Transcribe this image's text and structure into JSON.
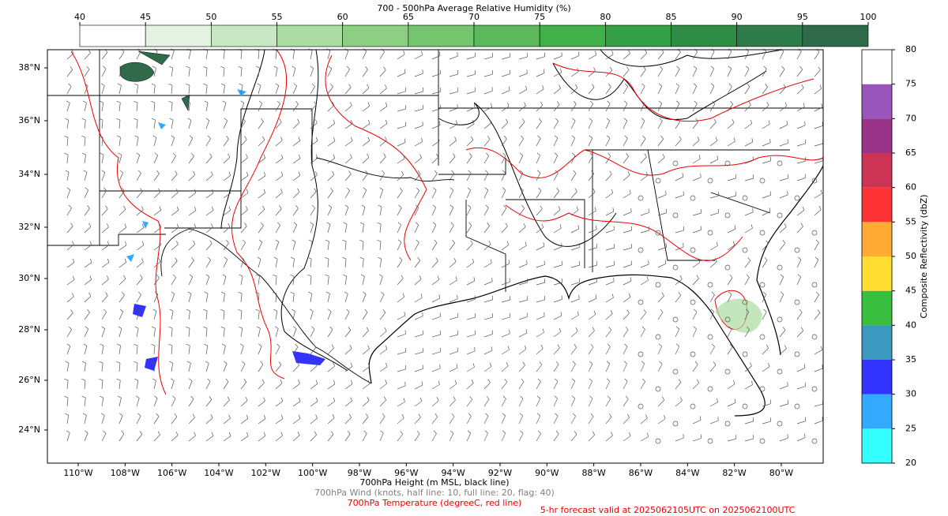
{
  "top_colorbar": {
    "title": "700 - 500hPa Average Relative Humidity (%)",
    "ticks": [
      40,
      45,
      50,
      55,
      60,
      65,
      70,
      75,
      80,
      85,
      90,
      95,
      100
    ],
    "colors": [
      "#ffffff",
      "#e3f2e1",
      "#c7e8c2",
      "#abdca1",
      "#8dcf82",
      "#73c66d",
      "#5bb95a",
      "#3fb148",
      "#34a046",
      "#2f8c45",
      "#2e7c49",
      "#2f6b4a"
    ]
  },
  "right_colorbar": {
    "label": "Composite Reflectivity (dbZ)",
    "ticks": [
      20,
      25,
      30,
      35,
      40,
      45,
      50,
      55,
      60,
      65,
      70,
      75,
      80
    ],
    "colors": [
      "#33ffff",
      "#33aaff",
      "#3333ff",
      "#3b99bf",
      "#39bf3f",
      "#ffdd33",
      "#ffaa33",
      "#ff3333",
      "#cc3355",
      "#993388",
      "#9955bb",
      "#ffffff"
    ]
  },
  "map": {
    "lat_labels": [
      "38°N",
      "36°N",
      "34°N",
      "32°N",
      "30°N",
      "28°N",
      "26°N",
      "24°N"
    ],
    "lon_labels": [
      "110°W",
      "108°W",
      "106°W",
      "104°W",
      "102°W",
      "100°W",
      "98°W",
      "96°W",
      "94°W",
      "92°W",
      "90°W",
      "88°W",
      "86°W",
      "84°W",
      "82°W",
      "80°W"
    ]
  },
  "captions": {
    "height": "700hPa Height (m MSL, black line)",
    "wind": "700hPa Wind (knots, half line: 10, full line: 20, flag: 40)",
    "temperature": "700hPa Temperature (degreeC, red line)",
    "forecast": "5-hr forecast valid at 2025062105UTC on 2025062100UTC"
  }
}
